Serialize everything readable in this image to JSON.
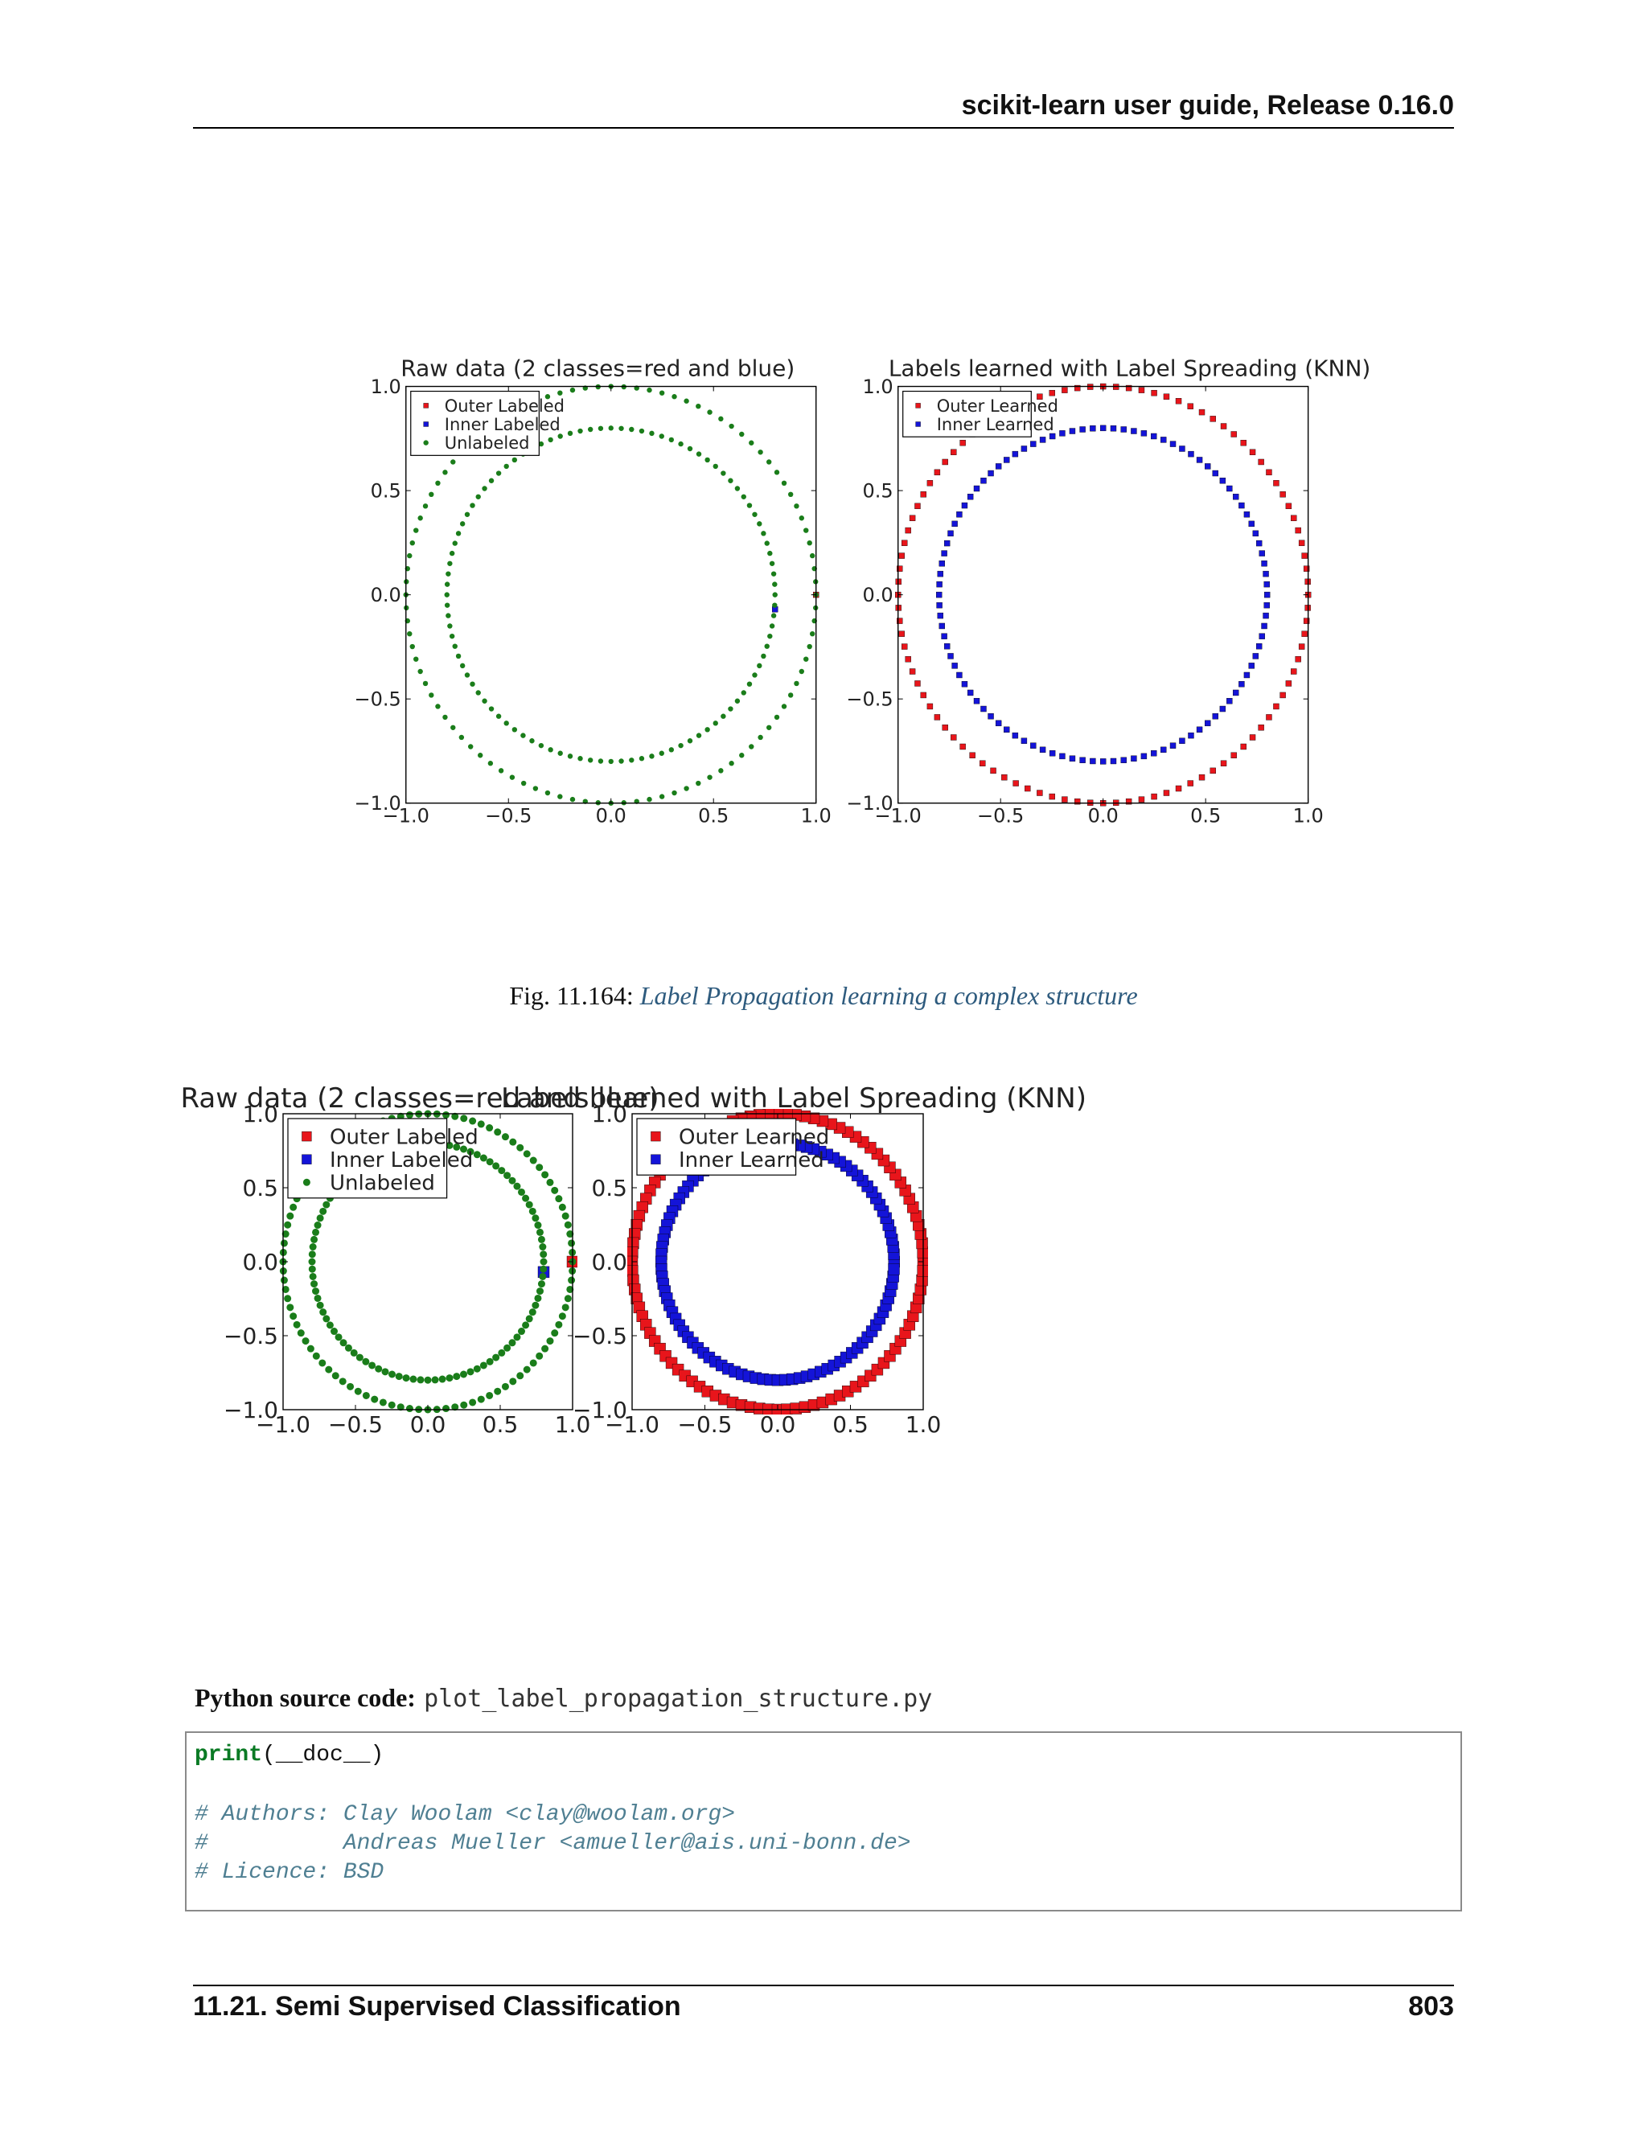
{
  "header": {
    "running_title": "scikit-learn user guide, Release 0.16.0"
  },
  "figure_top": {
    "left_title": "Raw data (2 classes=red and blue)",
    "right_title": "Labels learned with Label Spreading (KNN)"
  },
  "caption": {
    "prefix": "Fig. 11.164:",
    "title": "Label Propagation learning a complex structure"
  },
  "figure_bottom": {
    "left_title": "Raw data (2 classes=red and blue)",
    "right_title": "Labels learned with Label Spreading (KNN)"
  },
  "source": {
    "label": "Python source code:",
    "filename": "plot_label_propagation_structure.py"
  },
  "code": {
    "line1_kw": "print",
    "line1_rest": "(__doc__)",
    "line2": "# Authors: Clay Woolam <clay@woolam.org>",
    "line3": "#          Andreas Mueller <amueller@ais.uni-bonn.de>",
    "line4": "# Licence: BSD"
  },
  "footer": {
    "section": "11.21.  Semi Supervised Classification",
    "page": "803"
  },
  "colors": {
    "red": "#e8151b",
    "blue": "#1414d8",
    "green": "#1a7d1a",
    "link": "#2e5b7e"
  },
  "chart_data": [
    {
      "type": "scatter",
      "title": "Raw data (2 classes=red and blue)",
      "xlabel": "",
      "ylabel": "",
      "xlim": [
        -1.0,
        1.0
      ],
      "ylim": [
        -1.0,
        1.0
      ],
      "xticks": [
        "−1.0",
        "−0.5",
        "0.0",
        "0.5",
        "1.0"
      ],
      "yticks": [
        "−1.0",
        "−0.5",
        "0.0",
        "0.5",
        "1.0"
      ],
      "legend": {
        "placement": "upper-left",
        "entries": [
          "Outer Labeled",
          "Inner Labeled",
          "Unlabeled"
        ]
      },
      "series": [
        {
          "name": "Outer Labeled",
          "color": "#e8151b",
          "marker": "square",
          "points": [
            [
              1.0,
              0.0
            ]
          ]
        },
        {
          "name": "Inner Labeled",
          "color": "#1414d8",
          "marker": "square",
          "points": [
            [
              0.8,
              -0.07
            ]
          ]
        },
        {
          "name": "Unlabeled",
          "color": "#1a7d1a",
          "marker": "dot",
          "circles": [
            {
              "radius": 1.0,
              "count": 100
            },
            {
              "radius": 0.8,
              "count": 100
            }
          ]
        }
      ]
    },
    {
      "type": "scatter",
      "title": "Labels learned with Label Spreading (KNN)",
      "xlabel": "",
      "ylabel": "",
      "xlim": [
        -1.0,
        1.0
      ],
      "ylim": [
        -1.0,
        1.0
      ],
      "xticks": [
        "−1.0",
        "−0.5",
        "0.0",
        "0.5",
        "1.0"
      ],
      "yticks": [
        "−1.0",
        "−0.5",
        "0.0",
        "0.5",
        "1.0"
      ],
      "legend": {
        "placement": "upper-left",
        "entries": [
          "Outer Learned",
          "Inner Learned"
        ]
      },
      "series": [
        {
          "name": "Outer Learned",
          "color": "#e8151b",
          "marker": "square",
          "circles": [
            {
              "radius": 1.0,
              "count": 100
            }
          ]
        },
        {
          "name": "Inner Learned",
          "color": "#1414d8",
          "marker": "square",
          "circles": [
            {
              "radius": 0.8,
              "count": 100
            }
          ]
        }
      ]
    }
  ]
}
